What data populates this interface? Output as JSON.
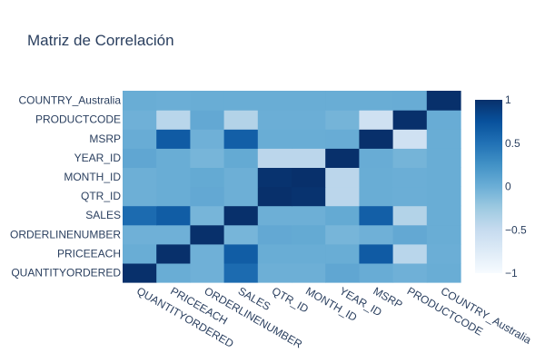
{
  "chart_data": {
    "type": "heatmap",
    "title": "Matriz de Correlación",
    "xlabel": "",
    "ylabel": "",
    "labels_x": [
      "QUANTITYORDERED",
      "PRICEEACH",
      "ORDERLINENUMBER",
      "SALES",
      "QTR_ID",
      "MONTH_ID",
      "YEAR_ID",
      "MSRP",
      "PRODUCTCODE",
      "COUNTRY_Australia"
    ],
    "labels_y_bottom_to_top": [
      "QUANTITYORDERED",
      "PRICEEACH",
      "ORDERLINENUMBER",
      "SALES",
      "QTR_ID",
      "MONTH_ID",
      "YEAR_ID",
      "MSRP",
      "PRODUCTCODE",
      "COUNTRY_Australia"
    ],
    "z_rows_bottom_to_top": [
      [
        1.0,
        0.01,
        -0.02,
        0.55,
        -0.01,
        -0.01,
        0.07,
        0.02,
        -0.02,
        0.01
      ],
      [
        0.01,
        1.0,
        -0.02,
        0.66,
        0.01,
        0.01,
        0.01,
        0.67,
        -0.42,
        0.0
      ],
      [
        -0.02,
        -0.02,
        1.0,
        -0.06,
        0.05,
        0.04,
        -0.06,
        -0.02,
        0.05,
        0.01
      ],
      [
        0.55,
        0.66,
        -0.06,
        1.0,
        -0.01,
        -0.01,
        0.04,
        0.64,
        -0.38,
        0.01
      ],
      [
        -0.01,
        0.01,
        0.05,
        -0.01,
        1.0,
        0.98,
        -0.43,
        0.01,
        0.0,
        0.01
      ],
      [
        -0.01,
        0.01,
        0.04,
        -0.01,
        0.98,
        1.0,
        -0.43,
        0.01,
        0.0,
        0.01
      ],
      [
        0.07,
        0.01,
        -0.06,
        0.04,
        -0.43,
        -0.43,
        1.0,
        0.02,
        -0.05,
        0.01
      ],
      [
        0.02,
        0.67,
        -0.02,
        0.64,
        0.01,
        0.01,
        0.02,
        1.0,
        -0.59,
        0.01
      ],
      [
        -0.02,
        -0.42,
        0.05,
        -0.38,
        0.0,
        0.0,
        -0.05,
        -0.59,
        1.0,
        0.02
      ],
      [
        0.01,
        0.0,
        0.01,
        0.01,
        0.01,
        0.01,
        0.01,
        0.01,
        0.02,
        1.0
      ]
    ],
    "zmin": -1,
    "zmax": 1,
    "colorscale": "Blues",
    "colorbar_ticks": [
      "1",
      "0.5",
      "0",
      "−0.5",
      "−1"
    ],
    "colorbar_tick_values": [
      1,
      0.5,
      0,
      -0.5,
      -1
    ],
    "colors": {
      "high": "#08306b",
      "low": "#f7fbff",
      "text": "#2a3f5f"
    }
  }
}
